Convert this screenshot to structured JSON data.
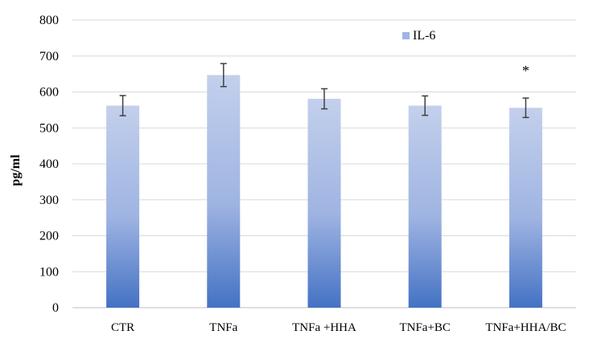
{
  "chart_data": {
    "type": "bar",
    "title": "",
    "xlabel": "",
    "ylabel": "pg/ml",
    "ylim": [
      0,
      800
    ],
    "yticks": [
      0,
      100,
      200,
      300,
      400,
      500,
      600,
      700,
      800
    ],
    "grid": true,
    "legend": {
      "position": "top-right",
      "entries": [
        "IL-6"
      ]
    },
    "categories": [
      "CTR",
      "TNFa",
      "TNFa +HHA",
      "TNFa+BC",
      "TNFa+HHA/BC"
    ],
    "series": [
      {
        "name": "IL-6",
        "values": [
          562,
          647,
          581,
          562,
          556
        ],
        "errors": [
          28,
          32,
          28,
          27,
          27
        ]
      }
    ],
    "annotations": [
      {
        "category": "TNFa+HHA/BC",
        "text": "*",
        "y": 668
      }
    ],
    "colors": {
      "bar_top": "#c3d0ec",
      "bar_mid": "#9fb4e2",
      "bar_bottom": "#4472c4",
      "grid": "#d9d9d9",
      "axis": "#bfbfbf",
      "error": "#404040"
    }
  }
}
